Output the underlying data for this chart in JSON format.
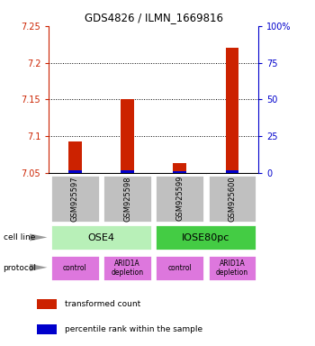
{
  "title": "GDS4826 / ILMN_1669816",
  "samples": [
    "GSM925597",
    "GSM925598",
    "GSM925599",
    "GSM925600"
  ],
  "red_values": [
    7.093,
    7.15,
    7.063,
    7.22
  ],
  "blue_values": [
    7.054,
    7.054,
    7.053,
    7.054
  ],
  "ymin": 7.05,
  "ymax": 7.25,
  "yticks_left": [
    7.05,
    7.1,
    7.15,
    7.2,
    7.25
  ],
  "yticks_right_pct": [
    0,
    25,
    50,
    75,
    100
  ],
  "gridlines_at": [
    7.1,
    7.15,
    7.2
  ],
  "cell_line_groups": [
    {
      "label": "OSE4",
      "start": 0,
      "end": 1,
      "color": "#b8f0b8"
    },
    {
      "label": "IOSE80pc",
      "start": 2,
      "end": 3,
      "color": "#44cc44"
    }
  ],
  "protocol_labels": [
    "control",
    "ARID1A\ndepletion",
    "control",
    "ARID1A\ndepletion"
  ],
  "protocol_color": "#dd77dd",
  "sample_box_color": "#c0c0c0",
  "red_color": "#cc2200",
  "blue_color": "#0000cc",
  "left_axis_color": "#cc2200",
  "right_axis_color": "#0000cc",
  "legend_red": "transformed count",
  "legend_blue": "percentile rank within the sample",
  "bar_width": 0.25
}
